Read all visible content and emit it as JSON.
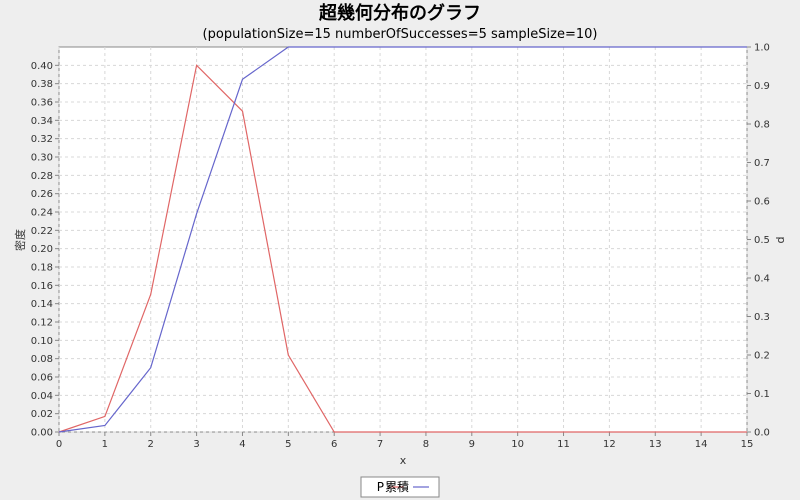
{
  "chart_data": {
    "type": "line",
    "title": "超幾何分布のグラフ",
    "subtitle": "(populationSize=15 numberOfSuccesses=5 sampleSize=10)",
    "xlabel": "x",
    "ylabel_left": "密度",
    "ylabel_right": "p",
    "x": [
      0,
      1,
      2,
      3,
      4,
      5,
      6,
      7,
      8,
      9,
      10,
      11,
      12,
      13,
      14,
      15
    ],
    "xlim": [
      0,
      15
    ],
    "ylim_left": [
      0,
      0.42
    ],
    "ylim_right": [
      0,
      1.0
    ],
    "yticks_left": [
      "0.00",
      "0.02",
      "0.04",
      "0.06",
      "0.08",
      "0.10",
      "0.12",
      "0.14",
      "0.16",
      "0.18",
      "0.20",
      "0.22",
      "0.24",
      "0.26",
      "0.28",
      "0.30",
      "0.32",
      "0.34",
      "0.36",
      "0.38",
      "0.40"
    ],
    "yticks_right": [
      "0.0",
      "0.1",
      "0.2",
      "0.3",
      "0.4",
      "0.5",
      "0.6",
      "0.7",
      "0.8",
      "0.9",
      "1.0"
    ],
    "grid": true,
    "legend_position": "bottom-center",
    "series": [
      {
        "name": "P",
        "axis": "left",
        "color": "#e06666",
        "values": [
          0.0,
          0.017,
          0.15,
          0.4,
          0.35,
          0.084,
          0.0,
          0.0,
          0.0,
          0.0,
          0.0,
          0.0,
          0.0,
          0.0,
          0.0,
          0.0
        ]
      },
      {
        "name": "累積",
        "axis": "right",
        "color": "#6666cc",
        "values": [
          0.0,
          0.017,
          0.167,
          0.567,
          0.916,
          1.0,
          1.0,
          1.0,
          1.0,
          1.0,
          1.0,
          1.0,
          1.0,
          1.0,
          1.0,
          1.0
        ]
      }
    ]
  }
}
